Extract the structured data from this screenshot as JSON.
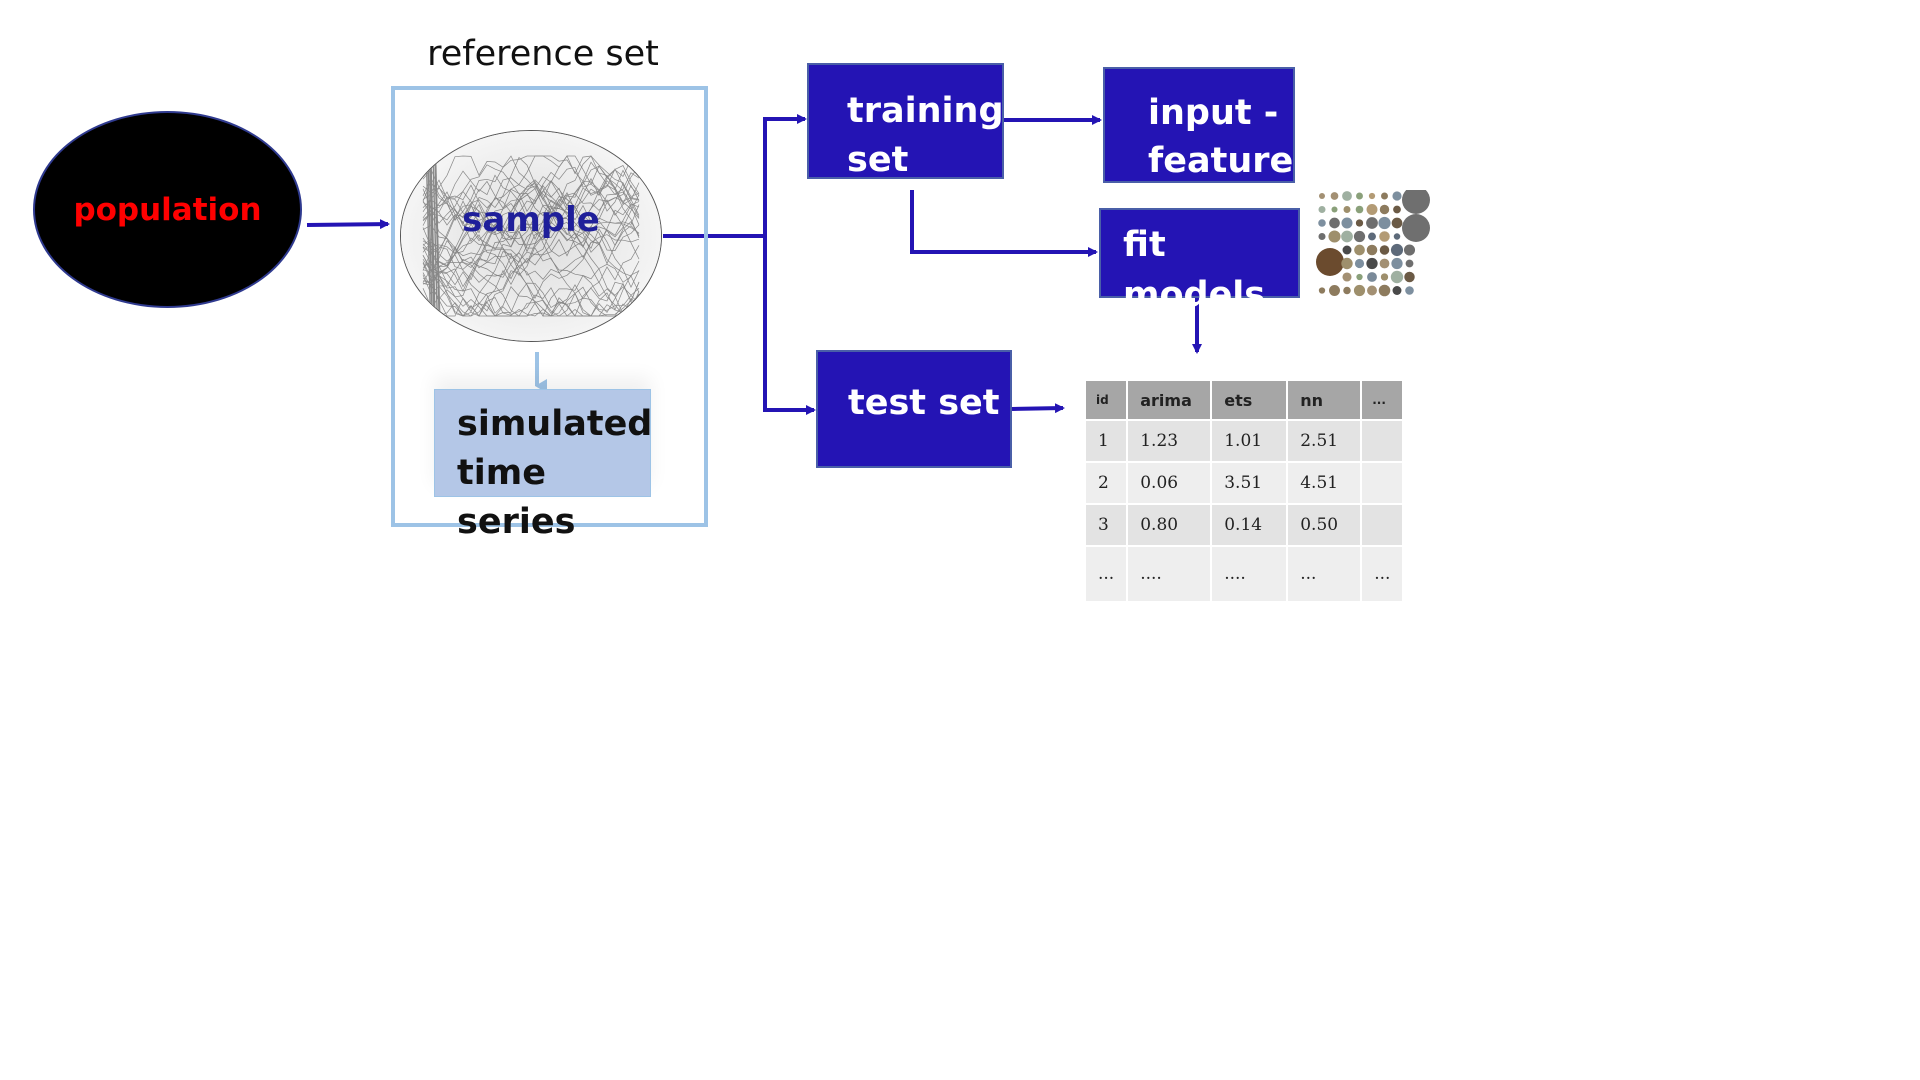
{
  "reference_set_label": "reference set",
  "population_label": "population",
  "sample_label": "sample",
  "simulated_label": [
    "simulated",
    "time series"
  ],
  "training_label": [
    "training",
    "set"
  ],
  "input_feature_label": [
    "input -",
    "feature"
  ],
  "fit_models_label": "fit models",
  "test_set_label": "test set",
  "colors": {
    "process_box": "#2414b4",
    "arrow": "#2414b4",
    "reference_border": "#9dc3e6",
    "simulated_fill": "#b4c7e7",
    "population_fill": "#000000",
    "population_text": "#ff0000",
    "sample_text": "#1f1f9a"
  },
  "results_table": {
    "headers": [
      "id",
      "arima",
      "ets",
      "nn",
      "..."
    ],
    "rows": [
      [
        "1",
        "1.23",
        "1.01",
        "2.51",
        ""
      ],
      [
        "2",
        "0.06",
        "3.51",
        "4.51",
        ""
      ],
      [
        "3",
        "0.80",
        "0.14",
        "0.50",
        ""
      ],
      [
        "...",
        "....",
        "....",
        "...",
        "..."
      ]
    ]
  }
}
